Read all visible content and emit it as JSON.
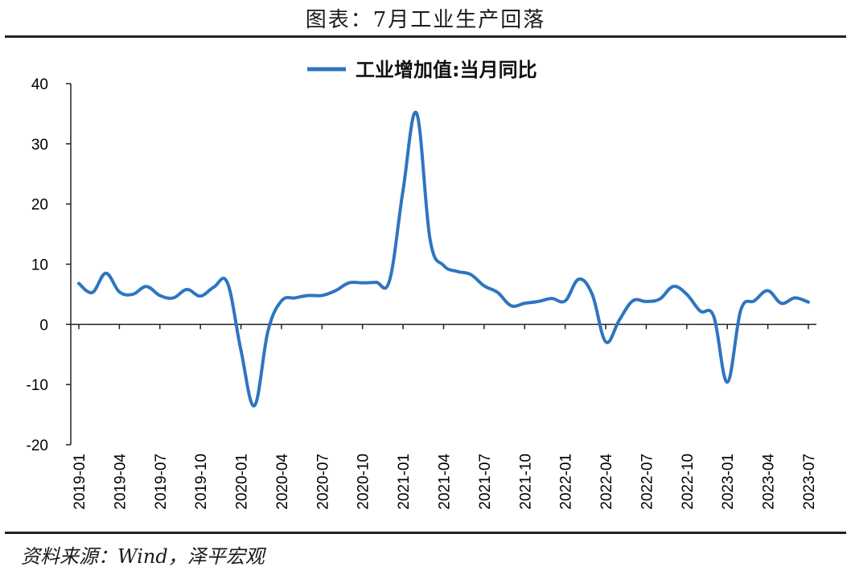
{
  "figure_title": "图表：7月工业生产回落",
  "source_note": "资料来源：Wind，泽平宏观",
  "colors": {
    "series": "#2e75c0",
    "axis": "#222222"
  },
  "chart_data": {
    "type": "line",
    "title": "",
    "xlabel": "",
    "ylabel": "",
    "ylim": [
      -20,
      40
    ],
    "yticks": [
      -20,
      -10,
      0,
      10,
      20,
      30,
      40
    ],
    "xtick_labels": [
      "2019-01",
      "2019-04",
      "2019-07",
      "2019-10",
      "2020-01",
      "2020-04",
      "2020-07",
      "2020-10",
      "2021-01",
      "2021-04",
      "2021-07",
      "2021-10",
      "2022-01",
      "2022-04",
      "2022-07",
      "2022-10",
      "2023-01",
      "2023-04",
      "2023-07"
    ],
    "legend": {
      "position": "top",
      "entries": [
        "工业增加值:当月同比"
      ]
    },
    "grid": false,
    "series": [
      {
        "name": "工业增加值:当月同比",
        "x": [
          "2019-01",
          "2019-02",
          "2019-03",
          "2019-04",
          "2019-05",
          "2019-06",
          "2019-07",
          "2019-08",
          "2019-09",
          "2019-10",
          "2019-11",
          "2019-12",
          "2020-01",
          "2020-02",
          "2020-03",
          "2020-04",
          "2020-05",
          "2020-06",
          "2020-07",
          "2020-08",
          "2020-09",
          "2020-10",
          "2020-11",
          "2020-12",
          "2021-01",
          "2021-02",
          "2021-03",
          "2021-04",
          "2021-05",
          "2021-06",
          "2021-07",
          "2021-08",
          "2021-09",
          "2021-10",
          "2021-11",
          "2021-12",
          "2022-01",
          "2022-02",
          "2022-03",
          "2022-04",
          "2022-05",
          "2022-06",
          "2022-07",
          "2022-08",
          "2022-09",
          "2022-10",
          "2022-11",
          "2022-12",
          "2023-01",
          "2023-02",
          "2023-03",
          "2023-04",
          "2023-05",
          "2023-06",
          "2023-07"
        ],
        "values": [
          6.8,
          5.3,
          8.5,
          5.4,
          5.0,
          6.3,
          4.8,
          4.4,
          5.8,
          4.7,
          6.2,
          6.9,
          -4.3,
          -13.5,
          -1.1,
          3.9,
          4.4,
          4.8,
          4.8,
          5.6,
          6.9,
          6.9,
          7.0,
          7.3,
          22.3,
          35.1,
          14.1,
          9.8,
          8.8,
          8.3,
          6.4,
          5.3,
          3.1,
          3.5,
          3.8,
          4.3,
          3.9,
          7.5,
          5.0,
          -2.9,
          0.7,
          3.9,
          3.8,
          4.2,
          6.3,
          5.0,
          2.2,
          1.3,
          -9.6,
          2.4,
          3.9,
          5.6,
          3.5,
          4.4,
          3.7
        ]
      }
    ]
  }
}
